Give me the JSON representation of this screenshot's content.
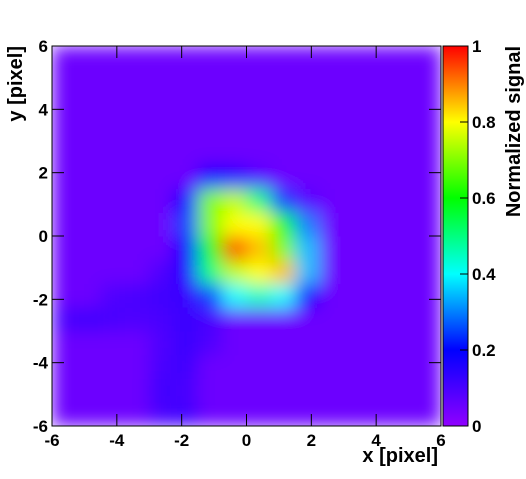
{
  "chart_data": {
    "type": "heatmap",
    "x_label": "x [pixel]",
    "y_label": "y [pixel]",
    "colorbar_label": "Normalized signal",
    "xbins": [
      -6,
      -5.25,
      -4.5,
      -3.75,
      -3,
      -2.25,
      -1.5,
      -0.75,
      0,
      0.75,
      1.5,
      2.25,
      3,
      3.75,
      4.5,
      5.25,
      6
    ],
    "ybins": [
      -6,
      -5.25,
      -4.5,
      -3.75,
      -3,
      -2.25,
      -1.5,
      -0.75,
      0,
      0.75,
      1.5,
      2.25,
      3,
      3.75,
      4.5,
      5.25,
      6
    ],
    "z": [
      [
        0.05,
        0.05,
        0.05,
        0.05,
        0.1,
        0.11,
        0.05,
        0.05,
        0.05,
        0.05,
        0.05,
        0.05,
        0.05,
        0.05,
        0.05,
        0.05
      ],
      [
        0.05,
        0.05,
        0.05,
        0.05,
        0.11,
        0.1,
        0.05,
        0.05,
        0.05,
        0.05,
        0.05,
        0.05,
        0.05,
        0.05,
        0.05,
        0.05
      ],
      [
        0.05,
        0.05,
        0.05,
        0.05,
        0.1,
        0.11,
        0.05,
        0.05,
        0.05,
        0.05,
        0.05,
        0.05,
        0.05,
        0.05,
        0.05,
        0.05
      ],
      [
        0.05,
        0.05,
        0.05,
        0.05,
        0.09,
        0.12,
        0.09,
        0.05,
        0.05,
        0.05,
        0.05,
        0.05,
        0.05,
        0.05,
        0.05,
        0.05
      ],
      [
        0.1,
        0.11,
        0.1,
        0.09,
        0.1,
        0.12,
        0.1,
        0.05,
        0.05,
        0.05,
        0.05,
        0.05,
        0.05,
        0.05,
        0.05,
        0.05
      ],
      [
        0.05,
        0.05,
        0.09,
        0.1,
        0.11,
        0.12,
        0.25,
        0.4,
        0.45,
        0.4,
        0.2,
        0.05,
        0.05,
        0.05,
        0.05,
        0.05
      ],
      [
        0.05,
        0.05,
        0.05,
        0.05,
        0.09,
        0.15,
        0.5,
        0.75,
        0.8,
        0.85,
        0.35,
        0.05,
        0.05,
        0.05,
        0.05,
        0.05
      ],
      [
        0.05,
        0.05,
        0.05,
        0.05,
        0.05,
        0.2,
        0.6,
        0.95,
        0.85,
        0.7,
        0.35,
        0.05,
        0.05,
        0.05,
        0.05,
        0.05
      ],
      [
        0.05,
        0.05,
        0.05,
        0.05,
        0.05,
        0.25,
        0.7,
        0.8,
        0.8,
        0.6,
        0.3,
        0.05,
        0.05,
        0.05,
        0.05,
        0.05
      ],
      [
        0.05,
        0.05,
        0.05,
        0.05,
        0.05,
        0.2,
        0.7,
        0.75,
        0.5,
        0.25,
        0.08,
        0.05,
        0.05,
        0.05,
        0.05,
        0.05
      ],
      [
        0.05,
        0.05,
        0.05,
        0.05,
        0.05,
        0.05,
        0.2,
        0.15,
        0.08,
        0.05,
        0.05,
        0.05,
        0.05,
        0.05,
        0.05,
        0.05
      ],
      [
        0.05,
        0.05,
        0.05,
        0.05,
        0.05,
        0.05,
        0.05,
        0.05,
        0.05,
        0.05,
        0.05,
        0.05,
        0.05,
        0.05,
        0.05,
        0.05
      ],
      [
        0.05,
        0.05,
        0.05,
        0.05,
        0.05,
        0.05,
        0.05,
        0.05,
        0.05,
        0.05,
        0.05,
        0.05,
        0.05,
        0.05,
        0.05,
        0.05
      ],
      [
        0.05,
        0.05,
        0.05,
        0.05,
        0.05,
        0.05,
        0.05,
        0.05,
        0.05,
        0.05,
        0.05,
        0.05,
        0.05,
        0.05,
        0.05,
        0.05
      ],
      [
        0.05,
        0.05,
        0.05,
        0.05,
        0.05,
        0.05,
        0.05,
        0.05,
        0.05,
        0.05,
        0.05,
        0.05,
        0.05,
        0.05,
        0.05,
        0.05
      ],
      [
        0.05,
        0.05,
        0.05,
        0.05,
        0.05,
        0.05,
        0.05,
        0.05,
        0.05,
        0.05,
        0.05,
        0.05,
        0.05,
        0.05,
        0.05,
        0.05
      ]
    ],
    "colors": [
      "#9000ff",
      "#0000ff",
      "#00ffff",
      "#00ff00",
      "#ffff00",
      "#ff0000"
    ],
    "xlim": [
      -6,
      6
    ],
    "xticks": [
      -6,
      -4,
      -2,
      0,
      2,
      4,
      6
    ],
    "ylim": [
      -6,
      6
    ],
    "yticks": [
      -6,
      -4,
      -2,
      0,
      2,
      4,
      6
    ],
    "zlim": [
      0,
      1
    ],
    "zticks": [
      0,
      0.2,
      0.4,
      0.6,
      0.8,
      1
    ]
  }
}
